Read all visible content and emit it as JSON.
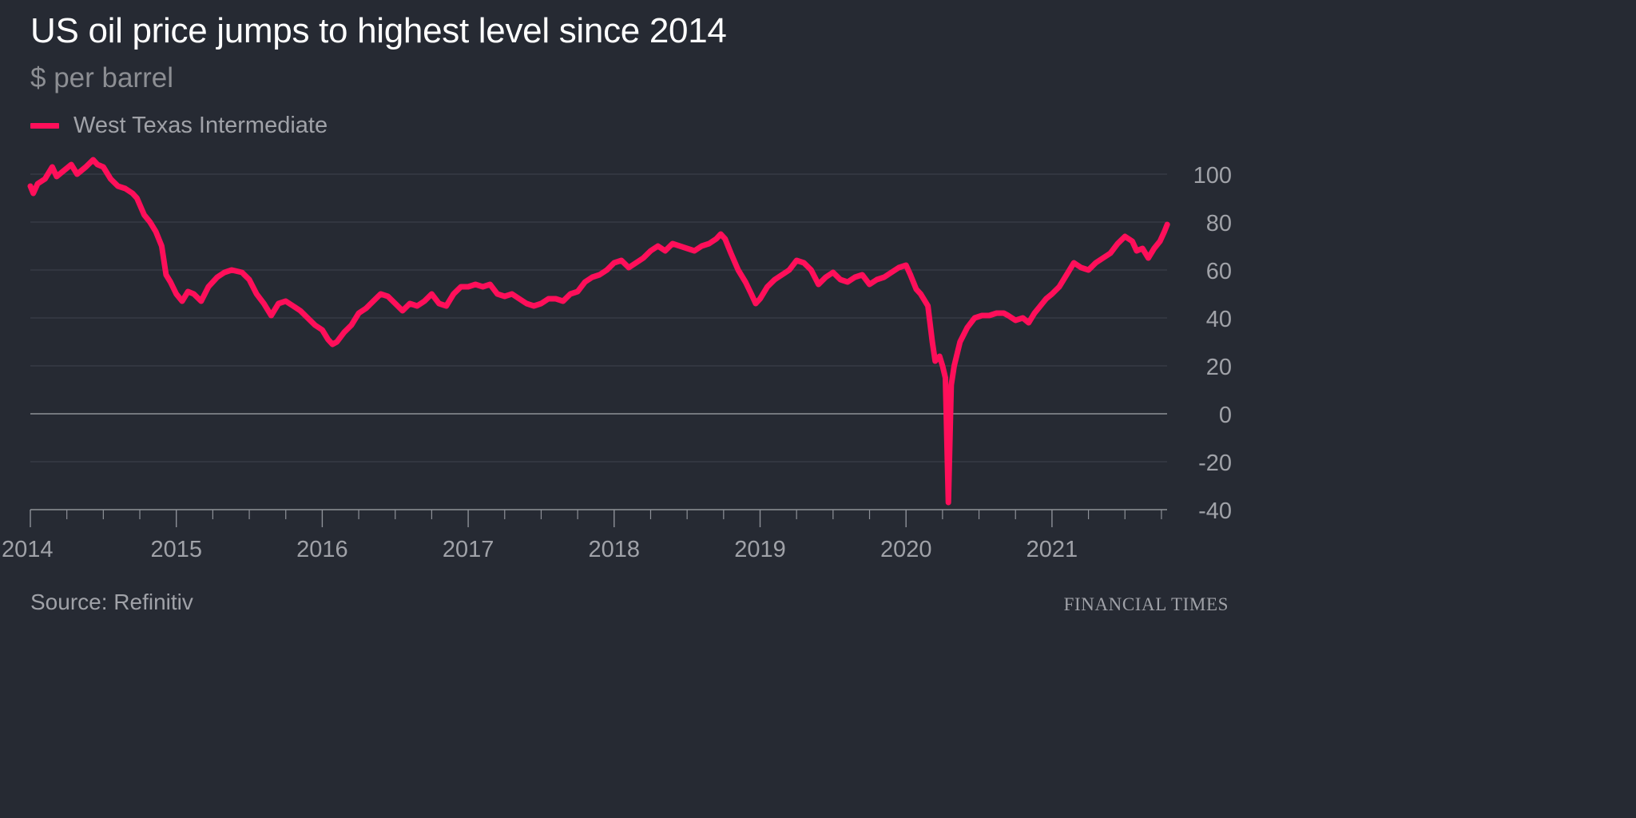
{
  "title": "US oil price jumps to highest level since 2014",
  "subtitle": "$ per barrel",
  "source": "Source: Refinitiv",
  "brand": "FINANCIAL TIMES",
  "colors": {
    "background": "#262a33",
    "series": "#ff0f5a",
    "grid": "#3f434c",
    "zero_line": "#8e9198",
    "tick_text": "#a0a2a8"
  },
  "chart_data": {
    "type": "line",
    "xlabel": "",
    "ylabel": "",
    "xlim": [
      2014.0,
      2021.8
    ],
    "ylim": [
      -40,
      110
    ],
    "y_ticks": [
      100,
      80,
      60,
      40,
      20,
      0,
      -20,
      -40
    ],
    "x_tick_labels": [
      "2014",
      "2015",
      "2016",
      "2017",
      "2018",
      "2019",
      "2020",
      "2021"
    ],
    "x_tick_years": [
      2014,
      2015,
      2016,
      2017,
      2018,
      2019,
      2020,
      2021
    ],
    "grid": true,
    "legend_position": "top-left",
    "series": [
      {
        "name": "West Texas Intermediate",
        "color": "#ff0f5a",
        "points": [
          [
            2014.0,
            95
          ],
          [
            2014.02,
            92
          ],
          [
            2014.05,
            96
          ],
          [
            2014.1,
            98
          ],
          [
            2014.15,
            103
          ],
          [
            2014.18,
            99
          ],
          [
            2014.22,
            101
          ],
          [
            2014.28,
            104
          ],
          [
            2014.32,
            100
          ],
          [
            2014.38,
            103
          ],
          [
            2014.43,
            106
          ],
          [
            2014.46,
            104
          ],
          [
            2014.5,
            103
          ],
          [
            2014.55,
            98
          ],
          [
            2014.6,
            95
          ],
          [
            2014.65,
            94
          ],
          [
            2014.7,
            92
          ],
          [
            2014.73,
            90
          ],
          [
            2014.78,
            83
          ],
          [
            2014.82,
            80
          ],
          [
            2014.86,
            76
          ],
          [
            2014.9,
            70
          ],
          [
            2014.93,
            58
          ],
          [
            2014.96,
            55
          ],
          [
            2015.0,
            50
          ],
          [
            2015.04,
            47
          ],
          [
            2015.08,
            51
          ],
          [
            2015.12,
            50
          ],
          [
            2015.17,
            47
          ],
          [
            2015.22,
            53
          ],
          [
            2015.28,
            57
          ],
          [
            2015.33,
            59
          ],
          [
            2015.38,
            60
          ],
          [
            2015.45,
            59
          ],
          [
            2015.5,
            56
          ],
          [
            2015.55,
            50
          ],
          [
            2015.6,
            46
          ],
          [
            2015.65,
            41
          ],
          [
            2015.7,
            46
          ],
          [
            2015.75,
            47
          ],
          [
            2015.8,
            45
          ],
          [
            2015.85,
            43
          ],
          [
            2015.9,
            40
          ],
          [
            2015.95,
            37
          ],
          [
            2016.0,
            35
          ],
          [
            2016.04,
            31
          ],
          [
            2016.07,
            29
          ],
          [
            2016.1,
            30
          ],
          [
            2016.15,
            34
          ],
          [
            2016.2,
            37
          ],
          [
            2016.25,
            42
          ],
          [
            2016.3,
            44
          ],
          [
            2016.35,
            47
          ],
          [
            2016.4,
            50
          ],
          [
            2016.45,
            49
          ],
          [
            2016.5,
            46
          ],
          [
            2016.55,
            43
          ],
          [
            2016.6,
            46
          ],
          [
            2016.65,
            45
          ],
          [
            2016.7,
            47
          ],
          [
            2016.75,
            50
          ],
          [
            2016.8,
            46
          ],
          [
            2016.85,
            45
          ],
          [
            2016.9,
            50
          ],
          [
            2016.95,
            53
          ],
          [
            2017.0,
            53
          ],
          [
            2017.05,
            54
          ],
          [
            2017.1,
            53
          ],
          [
            2017.15,
            54
          ],
          [
            2017.2,
            50
          ],
          [
            2017.25,
            49
          ],
          [
            2017.3,
            50
          ],
          [
            2017.35,
            48
          ],
          [
            2017.4,
            46
          ],
          [
            2017.45,
            45
          ],
          [
            2017.5,
            46
          ],
          [
            2017.55,
            48
          ],
          [
            2017.6,
            48
          ],
          [
            2017.65,
            47
          ],
          [
            2017.7,
            50
          ],
          [
            2017.75,
            51
          ],
          [
            2017.8,
            55
          ],
          [
            2017.85,
            57
          ],
          [
            2017.9,
            58
          ],
          [
            2017.95,
            60
          ],
          [
            2018.0,
            63
          ],
          [
            2018.05,
            64
          ],
          [
            2018.1,
            61
          ],
          [
            2018.15,
            63
          ],
          [
            2018.2,
            65
          ],
          [
            2018.25,
            68
          ],
          [
            2018.3,
            70
          ],
          [
            2018.35,
            68
          ],
          [
            2018.4,
            71
          ],
          [
            2018.45,
            70
          ],
          [
            2018.5,
            69
          ],
          [
            2018.55,
            68
          ],
          [
            2018.6,
            70
          ],
          [
            2018.65,
            71
          ],
          [
            2018.7,
            73
          ],
          [
            2018.73,
            75
          ],
          [
            2018.76,
            73
          ],
          [
            2018.8,
            67
          ],
          [
            2018.85,
            60
          ],
          [
            2018.9,
            55
          ],
          [
            2018.94,
            50
          ],
          [
            2018.97,
            46
          ],
          [
            2019.0,
            48
          ],
          [
            2019.05,
            53
          ],
          [
            2019.1,
            56
          ],
          [
            2019.15,
            58
          ],
          [
            2019.2,
            60
          ],
          [
            2019.25,
            64
          ],
          [
            2019.3,
            63
          ],
          [
            2019.35,
            60
          ],
          [
            2019.4,
            54
          ],
          [
            2019.45,
            57
          ],
          [
            2019.5,
            59
          ],
          [
            2019.55,
            56
          ],
          [
            2019.6,
            55
          ],
          [
            2019.65,
            57
          ],
          [
            2019.7,
            58
          ],
          [
            2019.75,
            54
          ],
          [
            2019.8,
            56
          ],
          [
            2019.85,
            57
          ],
          [
            2019.9,
            59
          ],
          [
            2019.95,
            61
          ],
          [
            2020.0,
            62
          ],
          [
            2020.03,
            58
          ],
          [
            2020.07,
            52
          ],
          [
            2020.1,
            50
          ],
          [
            2020.15,
            45
          ],
          [
            2020.18,
            30
          ],
          [
            2020.2,
            22
          ],
          [
            2020.23,
            24
          ],
          [
            2020.25,
            20
          ],
          [
            2020.27,
            15
          ],
          [
            2020.29,
            -37
          ],
          [
            2020.31,
            12
          ],
          [
            2020.33,
            20
          ],
          [
            2020.37,
            30
          ],
          [
            2020.42,
            36
          ],
          [
            2020.47,
            40
          ],
          [
            2020.52,
            41
          ],
          [
            2020.57,
            41
          ],
          [
            2020.62,
            42
          ],
          [
            2020.67,
            42
          ],
          [
            2020.7,
            41
          ],
          [
            2020.75,
            39
          ],
          [
            2020.8,
            40
          ],
          [
            2020.84,
            38
          ],
          [
            2020.88,
            42
          ],
          [
            2020.92,
            45
          ],
          [
            2020.96,
            48
          ],
          [
            2021.0,
            50
          ],
          [
            2021.05,
            53
          ],
          [
            2021.1,
            58
          ],
          [
            2021.15,
            63
          ],
          [
            2021.2,
            61
          ],
          [
            2021.25,
            60
          ],
          [
            2021.3,
            63
          ],
          [
            2021.35,
            65
          ],
          [
            2021.4,
            67
          ],
          [
            2021.45,
            71
          ],
          [
            2021.5,
            74
          ],
          [
            2021.55,
            72
          ],
          [
            2021.58,
            68
          ],
          [
            2021.62,
            69
          ],
          [
            2021.66,
            65
          ],
          [
            2021.7,
            69
          ],
          [
            2021.74,
            72
          ],
          [
            2021.77,
            76
          ],
          [
            2021.79,
            79
          ]
        ]
      }
    ]
  }
}
